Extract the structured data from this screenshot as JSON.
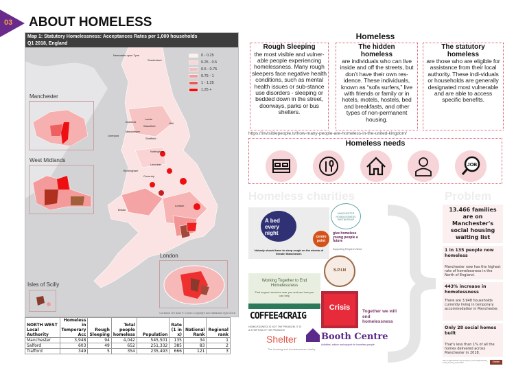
{
  "header": {
    "section_number": "03",
    "title": "ABOUT HOMELESS",
    "badge_color": "#6a2a8c"
  },
  "map": {
    "title_line1": "Map 1: Statutory Homelessness: Acceptances Rates per 1,000 households",
    "title_line2": "Q1 2018, England",
    "legend": [
      {
        "label": "0 - 0.25",
        "color": "#fdf0f0"
      },
      {
        "label": "0.25 - 0.5",
        "color": "#fbd6d6"
      },
      {
        "label": "0.5 - 0.75",
        "color": "#f9bcbc"
      },
      {
        "label": "0.75 - 1",
        "color": "#f49a9a"
      },
      {
        "label": "1 - 1.25",
        "color": "#ee5656"
      },
      {
        "label": "1.25 +",
        "color": "#ee0e0e"
      }
    ],
    "insets": [
      "Manchester",
      "West Midlands",
      "London",
      "Isles of Scilly"
    ],
    "cities": [
      "Newcastle upon Tyne",
      "Sunderland",
      "Bradford",
      "Leeds",
      "Wakefield",
      "Hull",
      "Liverpool",
      "Manchester",
      "Sheffield",
      "Nottingham",
      "Leicester",
      "Birmingham",
      "Coventry",
      "Bristol",
      "London"
    ],
    "credit": "Contains OS data © Crown Copyright and database right 2018"
  },
  "table": {
    "headers": [
      "NORTH WEST Local Authority",
      "Homeless in Temporary Acc",
      "Rough Sleeping",
      "Total people homeless",
      "Population",
      "Rate (1 in x)",
      "National Rank",
      "Regional rank"
    ],
    "rows": [
      [
        "Manchester",
        "3,948",
        "94",
        "4,042",
        "545,501",
        "135",
        "34",
        "1"
      ],
      [
        "Salford",
        "603",
        "49",
        "652",
        "251,332",
        "385",
        "83",
        "2"
      ],
      [
        "Trafford",
        "349",
        "5",
        "354",
        "235,493",
        "666",
        "121",
        "3"
      ]
    ]
  },
  "homeless": {
    "title": "Homeless",
    "types": [
      {
        "heading": "Rough Sleeping",
        "text": "the most visible and vulner-able people experiencing homelessness. Many rough sleepers face negative health conditions, such as mental health issues or sub-stance use disorders - sleeping or bedded down in the street, doorways, parks or bus shelters."
      },
      {
        "heading": "The hidden homeless",
        "text": "are individuals who can live inside and off the streets, but don’t have their own res-idence. These individuals, known as “sofa surfers,” live with friends or family or in hotels, motels, hostels, bed and breakfasts, and other types of non-permanent housing."
      },
      {
        "heading": "The statutory homeless",
        "text": "are those who are eligible for assistance from their local authority. These indi-viduals or households are generally designated most vulnerable and are able to access specific benefits."
      }
    ],
    "source_url": "https://invisiblepeople.tv/how-many-people-are-homeless-in-the-united-kingdom/"
  },
  "needs": {
    "title": "Homeless needs",
    "icons": [
      "bed-icon",
      "food-plate-icon",
      "house-icon",
      "doctor-icon",
      "job-search-icon"
    ],
    "job_label": "JOB"
  },
  "charities": {
    "title": "Homeless charities",
    "bed_every_night": "A bed every night",
    "bed_every_night_caption": "Nobody should have to sleep rough on the streets of Greater Manchester.",
    "mhp": "MANCHESTER HOMELESSNESS PARTNERSHIP",
    "centrepoint": "centre point",
    "centrepoint_tagline": "give homeless young people a future",
    "spin": "S.P.I.N",
    "spin_caption": "Supporting People in Need",
    "working_together": "Working Together to End Homelessness",
    "working_together_sub": "Find support services near you and see how you can help",
    "coffee4craig": "COFFEE4CRAIG",
    "coffee4craig_tagline": "HOMELESSNESS IS NOT THE PROBLEM, IT IS A SYMPTOM OF THE PROBLEM",
    "crisis": "Crisis",
    "crisis_tagline": "Together we will end homelessness",
    "shelter": "Shelter",
    "shelter_tagline": "The housing and homelessness charity",
    "booth": "Booth Centre",
    "booth_tagline": "Activities, advice and support for homeless people"
  },
  "problem": {
    "title": "Problem",
    "headline": "13.466 families are on Manchester's social housing waiting list",
    "facts": [
      {
        "heading": "1 in 135 people now homeless",
        "text": "Manchester now has the highest rate of homelessness in the North of England."
      },
      {
        "heading": "443% increase in homelessness",
        "text": "There are 3,948 households currently living in temporary accommodation in Manchester."
      },
      {
        "heading": "Only 28 social homes built",
        "text": "That's less than 1% of all the homes delivered across Manchester in 2018."
      }
    ],
    "source": "https://englandshelter.org.uk/support_us/campaigns/builds_social_housing_manchester",
    "source_logo": "Shelter"
  }
}
